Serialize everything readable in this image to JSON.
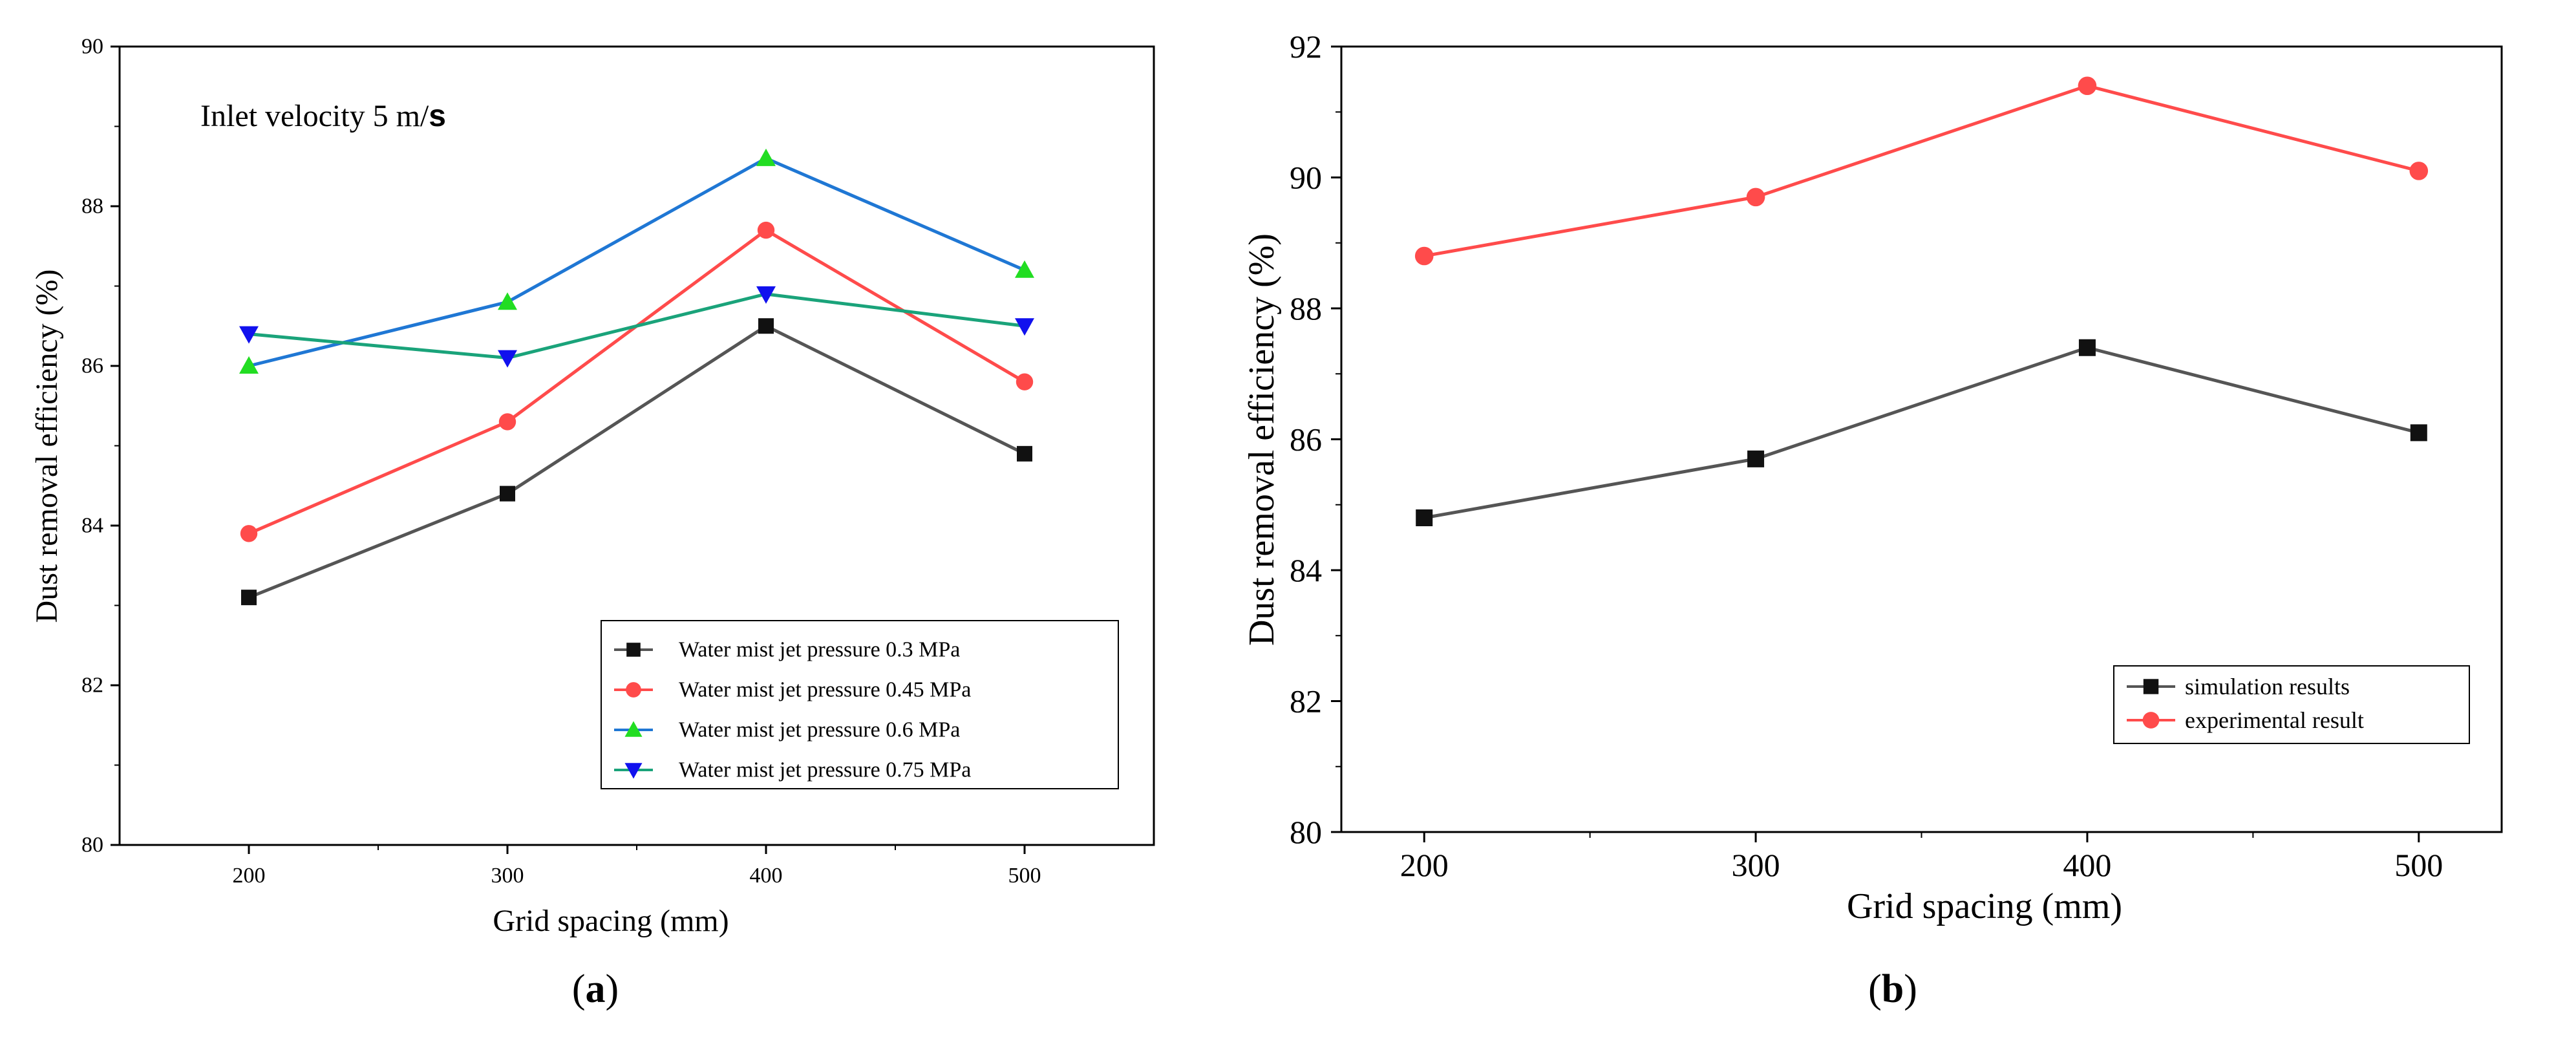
{
  "chart_data": [
    {
      "panel": "a",
      "caption": "(a)",
      "caption_letter": "a",
      "type": "line",
      "annotation": "Inlet velocity 5 m/s",
      "annotation_text": "Inlet velocity 5 m/",
      "annotation_unit": "s",
      "xlabel": "Grid spacing (mm)",
      "ylabel": "Dust removal efficiency (%)",
      "x": [
        200,
        300,
        400,
        500
      ],
      "xticks": [
        "200",
        "300",
        "400",
        "500"
      ],
      "xlim": [
        150,
        550
      ],
      "ylim": [
        80,
        90
      ],
      "yticks": [
        "80",
        "82",
        "84",
        "86",
        "88",
        "90"
      ],
      "grid": false,
      "legend_position": "bottom-right",
      "series": [
        {
          "name": "Water mist jet pressure 0.3 MPa",
          "values": [
            83.1,
            84.4,
            86.5,
            84.9
          ],
          "color": "#555555",
          "marker": "square"
        },
        {
          "name": "Water mist jet pressure 0.45 MPa",
          "values": [
            83.9,
            85.3,
            87.7,
            85.8
          ],
          "color": "#ff4b4b",
          "marker": "circle"
        },
        {
          "name": "Water mist jet pressure 0.6 MPa",
          "values": [
            86.0,
            86.8,
            88.6,
            87.2
          ],
          "color": "#1f77d4",
          "marker": "triangle-up",
          "marker_color": "#22dd22"
        },
        {
          "name": "Water mist jet pressure 0.75 MPa",
          "values": [
            86.4,
            86.1,
            86.9,
            86.5
          ],
          "color": "#1aa37a",
          "marker": "triangle-down",
          "marker_color": "#1111ee"
        }
      ]
    },
    {
      "panel": "b",
      "caption": "(b)",
      "caption_letter": "b",
      "type": "line",
      "xlabel": "Grid spacing (mm)",
      "ylabel": "Dust removal efficiency (%)",
      "x": [
        200,
        300,
        400,
        500
      ],
      "xticks": [
        "200",
        "300",
        "400",
        "500"
      ],
      "xlim": [
        175,
        525
      ],
      "ylim": [
        80,
        92
      ],
      "yticks": [
        "80",
        "82",
        "84",
        "86",
        "88",
        "90",
        "92"
      ],
      "grid": false,
      "legend_position": "bottom-right",
      "series": [
        {
          "name": "simulation results",
          "values": [
            84.8,
            85.7,
            87.4,
            86.1
          ],
          "color": "#555555",
          "marker": "square"
        },
        {
          "name": "experimental result",
          "values": [
            88.8,
            89.7,
            91.4,
            90.1
          ],
          "color": "#ff4b4b",
          "marker": "circle"
        }
      ]
    }
  ]
}
